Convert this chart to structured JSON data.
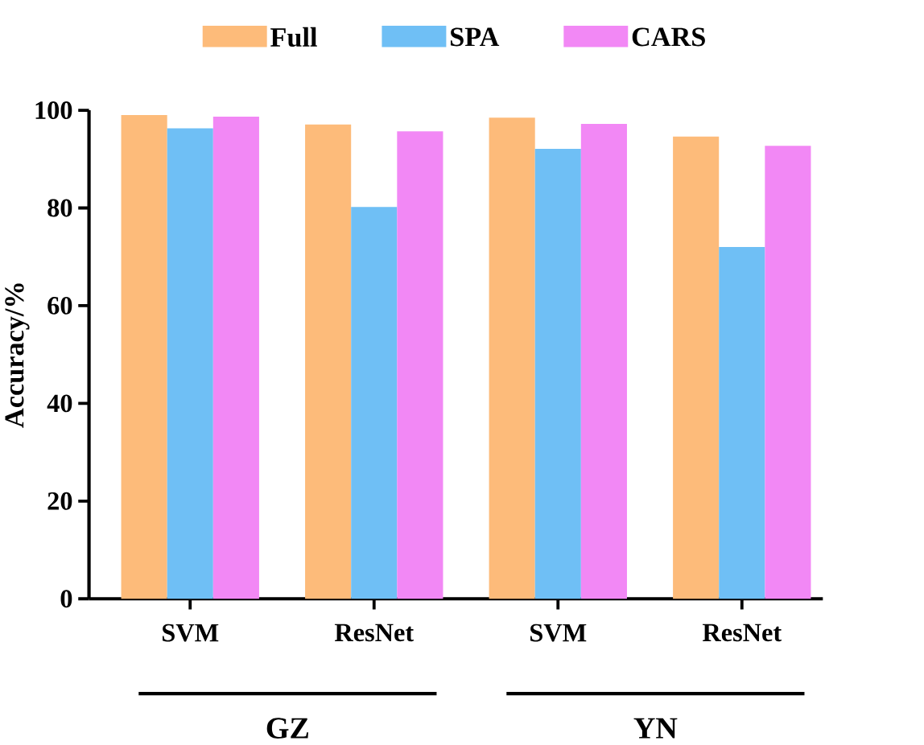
{
  "chart_data": {
    "type": "bar",
    "categories": [
      "SVM",
      "ResNet",
      "SVM",
      "ResNet"
    ],
    "series": [
      {
        "name": "Full",
        "color": "#fdbb7a",
        "values": [
          99.0,
          97.1,
          98.5,
          94.6
        ]
      },
      {
        "name": "SPA",
        "color": "#6fbff5",
        "values": [
          96.3,
          80.2,
          92.1,
          72.0
        ]
      },
      {
        "name": "CARS",
        "color": "#f288f5",
        "values": [
          98.7,
          95.7,
          97.2,
          92.7
        ]
      }
    ],
    "ylabel": "Accuracy/%",
    "ylim": [
      0,
      100
    ],
    "yticks": [
      0,
      20,
      40,
      60,
      80,
      100
    ],
    "legend": "top",
    "annotations": [
      "GZ",
      "YN"
    ]
  }
}
